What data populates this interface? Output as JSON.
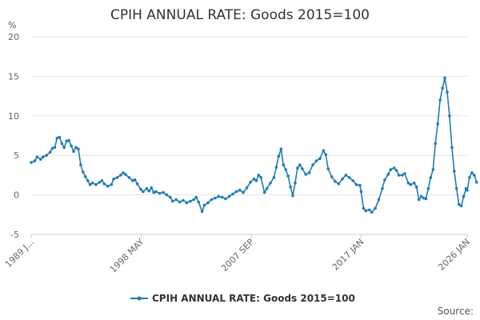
{
  "chart_data": {
    "type": "line",
    "title": "CPIH ANNUAL RATE: Goods 2015=100",
    "unit": "%",
    "source_label": "Source:",
    "legend": "CPIH ANNUAL RATE: Goods 2015=100",
    "color": "#1f7bb6",
    "ylim": [
      -5,
      20
    ],
    "yticks": [
      "-5",
      "0",
      "5",
      "10",
      "15",
      "20"
    ],
    "xlim": [
      1989.0,
      2026.0
    ],
    "xticks": [
      {
        "label": "1989 J...",
        "x": 1989.0
      },
      {
        "label": "1998 MAY",
        "x": 1998.33
      },
      {
        "label": "2007 SEP",
        "x": 2007.67
      },
      {
        "label": "2017 JAN",
        "x": 2017.0
      },
      {
        "label": "2026 JAN",
        "x": 2026.0
      }
    ],
    "grid": "horizontal",
    "series": [
      {
        "name": "CPIH ANNUAL RATE: Goods 2015=100",
        "points": [
          [
            1989.0,
            4.1
          ],
          [
            1989.3,
            4.3
          ],
          [
            1989.5,
            4.8
          ],
          [
            1989.8,
            4.5
          ],
          [
            1990.0,
            4.8
          ],
          [
            1990.3,
            5.0
          ],
          [
            1990.6,
            5.4
          ],
          [
            1990.8,
            5.9
          ],
          [
            1991.0,
            6.0
          ],
          [
            1991.2,
            7.2
          ],
          [
            1991.4,
            7.3
          ],
          [
            1991.6,
            6.5
          ],
          [
            1991.8,
            6.0
          ],
          [
            1992.0,
            6.8
          ],
          [
            1992.2,
            6.9
          ],
          [
            1992.4,
            6.2
          ],
          [
            1992.6,
            5.5
          ],
          [
            1992.8,
            6.0
          ],
          [
            1993.0,
            5.8
          ],
          [
            1993.2,
            3.8
          ],
          [
            1993.4,
            2.9
          ],
          [
            1993.6,
            2.3
          ],
          [
            1993.8,
            1.8
          ],
          [
            1994.0,
            1.3
          ],
          [
            1994.2,
            1.5
          ],
          [
            1994.5,
            1.3
          ],
          [
            1994.8,
            1.6
          ],
          [
            1995.0,
            1.8
          ],
          [
            1995.2,
            1.4
          ],
          [
            1995.5,
            1.1
          ],
          [
            1995.8,
            1.3
          ],
          [
            1996.0,
            2.0
          ],
          [
            1996.3,
            2.2
          ],
          [
            1996.6,
            2.5
          ],
          [
            1996.8,
            2.8
          ],
          [
            1997.0,
            2.6
          ],
          [
            1997.3,
            2.2
          ],
          [
            1997.6,
            1.8
          ],
          [
            1997.8,
            1.9
          ],
          [
            1998.0,
            1.4
          ],
          [
            1998.3,
            0.7
          ],
          [
            1998.5,
            0.4
          ],
          [
            1998.8,
            0.8
          ],
          [
            1999.0,
            0.5
          ],
          [
            1999.2,
            0.9
          ],
          [
            1999.4,
            0.3
          ],
          [
            1999.6,
            0.4
          ],
          [
            1999.9,
            0.2
          ],
          [
            2000.2,
            0.3
          ],
          [
            2000.5,
            0.0
          ],
          [
            2000.8,
            -0.3
          ],
          [
            2001.0,
            -0.8
          ],
          [
            2001.3,
            -0.6
          ],
          [
            2001.6,
            -0.9
          ],
          [
            2001.9,
            -0.7
          ],
          [
            2002.2,
            -1.0
          ],
          [
            2002.5,
            -0.8
          ],
          [
            2002.8,
            -0.6
          ],
          [
            2003.0,
            -0.3
          ],
          [
            2003.2,
            -0.9
          ],
          [
            2003.5,
            -2.1
          ],
          [
            2003.7,
            -1.3
          ],
          [
            2004.0,
            -1.0
          ],
          [
            2004.3,
            -0.6
          ],
          [
            2004.6,
            -0.4
          ],
          [
            2004.9,
            -0.2
          ],
          [
            2005.2,
            -0.3
          ],
          [
            2005.5,
            -0.5
          ],
          [
            2005.8,
            -0.2
          ],
          [
            2006.1,
            0.1
          ],
          [
            2006.4,
            0.4
          ],
          [
            2006.7,
            0.6
          ],
          [
            2007.0,
            0.3
          ],
          [
            2007.3,
            0.9
          ],
          [
            2007.6,
            1.6
          ],
          [
            2007.9,
            2.0
          ],
          [
            2008.1,
            1.8
          ],
          [
            2008.3,
            2.5
          ],
          [
            2008.5,
            2.2
          ],
          [
            2008.8,
            0.3
          ],
          [
            2009.0,
            0.8
          ],
          [
            2009.3,
            1.5
          ],
          [
            2009.6,
            2.2
          ],
          [
            2009.8,
            3.5
          ],
          [
            2010.0,
            4.9
          ],
          [
            2010.2,
            5.8
          ],
          [
            2010.4,
            3.8
          ],
          [
            2010.6,
            3.2
          ],
          [
            2010.8,
            2.4
          ],
          [
            2011.0,
            1.0
          ],
          [
            2011.2,
            -0.1
          ],
          [
            2011.4,
            1.5
          ],
          [
            2011.6,
            3.4
          ],
          [
            2011.8,
            3.8
          ],
          [
            2012.0,
            3.3
          ],
          [
            2012.3,
            2.6
          ],
          [
            2012.6,
            2.8
          ],
          [
            2012.9,
            3.8
          ],
          [
            2013.2,
            4.3
          ],
          [
            2013.5,
            4.6
          ],
          [
            2013.8,
            5.6
          ],
          [
            2014.0,
            5.1
          ],
          [
            2014.2,
            3.3
          ],
          [
            2014.5,
            2.3
          ],
          [
            2014.8,
            1.7
          ],
          [
            2015.1,
            1.4
          ],
          [
            2015.4,
            2.0
          ],
          [
            2015.7,
            2.5
          ],
          [
            2016.0,
            2.2
          ],
          [
            2016.3,
            1.8
          ],
          [
            2016.6,
            1.3
          ],
          [
            2016.9,
            1.2
          ],
          [
            2017.0,
            0.4
          ],
          [
            2017.2,
            -1.7
          ],
          [
            2017.4,
            -2.0
          ],
          [
            2017.7,
            -1.9
          ],
          [
            2017.9,
            -2.2
          ],
          [
            2018.2,
            -1.7
          ],
          [
            2018.5,
            -0.6
          ],
          [
            2018.8,
            0.8
          ],
          [
            2019.0,
            1.9
          ],
          [
            2019.3,
            2.6
          ],
          [
            2019.5,
            3.2
          ],
          [
            2019.8,
            3.4
          ],
          [
            2020.0,
            3.1
          ],
          [
            2020.2,
            2.5
          ],
          [
            2020.5,
            2.5
          ],
          [
            2020.7,
            2.7
          ],
          [
            2021.0,
            1.5
          ],
          [
            2021.2,
            1.3
          ],
          [
            2021.5,
            1.5
          ],
          [
            2021.7,
            1.0
          ],
          [
            2021.9,
            -0.6
          ],
          [
            2022.1,
            -0.2
          ],
          [
            2022.3,
            -0.4
          ],
          [
            2022.5,
            -0.5
          ],
          [
            2022.7,
            0.8
          ],
          [
            2022.9,
            2.2
          ],
          [
            2023.1,
            3.2
          ],
          [
            2023.3,
            6.5
          ],
          [
            2023.5,
            9.0
          ],
          [
            2023.7,
            12.0
          ],
          [
            2023.9,
            13.5
          ],
          [
            2024.1,
            14.8
          ],
          [
            2024.3,
            13.0
          ],
          [
            2024.5,
            10.0
          ],
          [
            2024.7,
            6.0
          ],
          [
            2024.9,
            3.0
          ],
          [
            2025.1,
            0.8
          ],
          [
            2025.3,
            -1.2
          ],
          [
            2025.5,
            -1.4
          ],
          [
            2025.7,
            -0.2
          ],
          [
            2025.9,
            0.8
          ],
          [
            2026.0,
            0.6
          ],
          [
            2026.2,
            2.2
          ],
          [
            2026.4,
            2.8
          ],
          [
            2026.6,
            2.5
          ],
          [
            2026.8,
            1.6
          ]
        ]
      }
    ]
  }
}
